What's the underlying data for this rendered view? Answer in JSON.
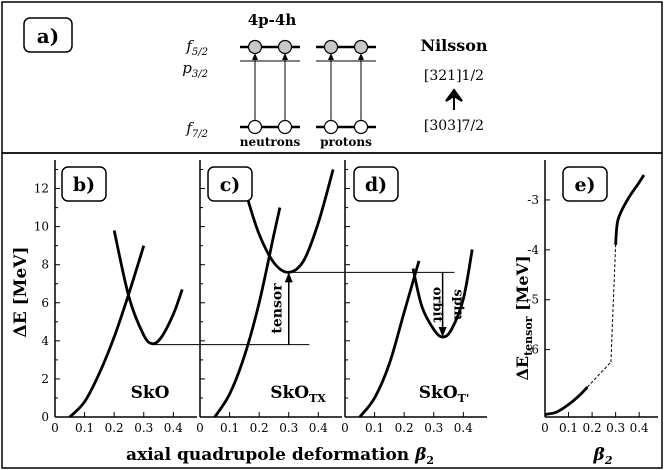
{
  "top_panel": {
    "panel_label": "a)",
    "config_title": "4p-4h",
    "level_upper": "f5/2",
    "level_middle": "p3/2",
    "level_lower": "f7/2",
    "neutrons_label": "neutrons",
    "protons_label": "protons",
    "nilsson_title": "Nilsson",
    "nilsson_upper": "[321]1/2",
    "nilsson_lower": "[303]7/2"
  },
  "chart_data": [
    {
      "type": "line",
      "panel": "b)",
      "name": "SkO",
      "ylabel": "ΔE [MeV]",
      "xlim": [
        0,
        0.48
      ],
      "ylim": [
        0,
        13.5
      ],
      "xticks": [
        0,
        0.1,
        0.2,
        0.3,
        0.4
      ],
      "xtick_labels": [
        "0",
        "0.1",
        "0.2",
        "0.3",
        "0.4"
      ],
      "yticks": [
        0,
        2,
        4,
        6,
        8,
        10,
        12
      ],
      "ytick_labels": [
        "0",
        "2",
        "4",
        "6",
        "8",
        "10",
        "12"
      ],
      "series": [
        {
          "name": "rising",
          "x": [
            0.05,
            0.1,
            0.15,
            0.2,
            0.25,
            0.3
          ],
          "y": [
            0.0,
            0.8,
            2.3,
            4.2,
            6.5,
            9.0
          ]
        },
        {
          "name": "parabola",
          "x": [
            0.2,
            0.25,
            0.3,
            0.33,
            0.36,
            0.4,
            0.43
          ],
          "y": [
            9.8,
            6.3,
            4.3,
            3.85,
            4.2,
            5.4,
            6.7
          ]
        }
      ],
      "reference_line": {
        "y": 3.8,
        "x_start": 0.33
      }
    },
    {
      "type": "line",
      "panel": "c)",
      "name": "SkO",
      "name_subscript": "TX",
      "xlim": [
        0,
        0.48
      ],
      "ylim": [
        0,
        13.5
      ],
      "xticks": [
        0,
        0.1,
        0.2,
        0.3,
        0.4
      ],
      "xtick_labels": [
        "0",
        "0.1",
        "0.2",
        "0.3",
        "0.4"
      ],
      "yticks": [
        0,
        2,
        4,
        6,
        8,
        10,
        12
      ],
      "series": [
        {
          "name": "rising",
          "x": [
            0.05,
            0.1,
            0.15,
            0.2,
            0.25,
            0.27
          ],
          "y": [
            0.0,
            1.2,
            3.2,
            6.0,
            9.6,
            11.0
          ]
        },
        {
          "name": "parabola",
          "x": [
            0.16,
            0.2,
            0.25,
            0.3,
            0.35,
            0.4,
            0.45
          ],
          "y": [
            11.5,
            9.6,
            8.1,
            7.6,
            8.2,
            10.2,
            13.0
          ]
        }
      ],
      "reference_line": {
        "y": 7.6,
        "x_start": 0.3
      },
      "annotation": {
        "text": "tensor",
        "x": 0.3,
        "y_from": 3.8,
        "y_to": 7.6
      }
    },
    {
      "type": "line",
      "panel": "d)",
      "name": "SkO",
      "name_subscript": "T'",
      "xlim": [
        0,
        0.48
      ],
      "ylim": [
        0,
        13.5
      ],
      "xticks": [
        0,
        0.1,
        0.2,
        0.3,
        0.4
      ],
      "xtick_labels": [
        "0",
        "0.1",
        "0.2",
        "0.3",
        "0.4"
      ],
      "yticks": [
        0,
        2,
        4,
        6,
        8,
        10,
        12
      ],
      "series": [
        {
          "name": "rising",
          "x": [
            0.05,
            0.1,
            0.15,
            0.2,
            0.25
          ],
          "y": [
            0.0,
            1.0,
            2.8,
            5.5,
            8.2
          ]
        },
        {
          "name": "parabola",
          "x": [
            0.23,
            0.26,
            0.3,
            0.33,
            0.36,
            0.4,
            0.43
          ],
          "y": [
            7.8,
            5.8,
            4.6,
            4.2,
            4.6,
            6.2,
            8.8
          ]
        }
      ],
      "annotation": {
        "text_line1": "spin",
        "text_line2": "orbit",
        "x": 0.33,
        "y_from": 7.6,
        "y_to": 4.2
      }
    },
    {
      "type": "line",
      "panel": "e)",
      "ylabel": "ΔE_tensor [MeV]",
      "xlabel": "β2",
      "xlim": [
        0,
        0.48
      ],
      "ylim": [
        -7.35,
        -2.2
      ],
      "xticks": [
        0,
        0.1,
        0.2,
        0.3,
        0.4
      ],
      "xtick_labels": [
        "0",
        "0.1",
        "0.2",
        "0.3",
        "0.4"
      ],
      "yticks": [
        -6,
        -5,
        -4,
        -3
      ],
      "ytick_labels": [
        "-6",
        "-5",
        "-4",
        "-3"
      ],
      "series": [
        {
          "name": "lower",
          "style": "solid",
          "x": [
            0.0,
            0.05,
            0.1,
            0.15,
            0.18
          ],
          "y": [
            -7.3,
            -7.25,
            -7.1,
            -6.9,
            -6.75
          ]
        },
        {
          "name": "bridge_lower",
          "style": "dashed",
          "x": [
            0.18,
            0.28
          ],
          "y": [
            -6.75,
            -6.25
          ]
        },
        {
          "name": "bridge_vertical",
          "style": "dashed",
          "x": [
            0.28,
            0.3
          ],
          "y": [
            -6.25,
            -3.9
          ]
        },
        {
          "name": "upper",
          "style": "solid",
          "x": [
            0.3,
            0.31,
            0.35,
            0.4,
            0.42
          ],
          "y": [
            -3.9,
            -3.4,
            -3.0,
            -2.65,
            -2.5
          ]
        }
      ]
    }
  ],
  "shared_xlabel": "axial quadrupole deformation",
  "shared_xlabel_symbol": "β",
  "shared_xlabel_sub": "2"
}
